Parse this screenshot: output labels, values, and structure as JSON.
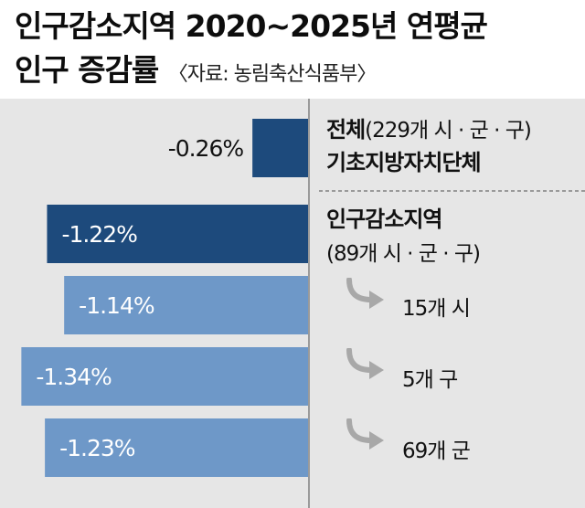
{
  "title": {
    "line1": "인구감소지역 2020~2025년 연평균",
    "line2": "인구 증감률",
    "source": "〈자료: 농림축산식품부〉"
  },
  "colors": {
    "dark_bar": "#1d4a7c",
    "light_bar": "#6e98c8",
    "background": "#e6e6e6",
    "divider": "#9a9a9a",
    "arrow": "#a8a8a8"
  },
  "chart_data": {
    "type": "bar",
    "orientation": "horizontal",
    "categories": [
      "전체(229개 시·군·구) 기초지방자치단체",
      "인구감소지역(89개 시·군·구)",
      "15개 시",
      "5개 구",
      "69개 군"
    ],
    "values": [
      -0.26,
      -1.22,
      -1.14,
      -1.34,
      -1.23
    ],
    "value_labels": [
      "-0.26%",
      "-1.22%",
      "-1.14%",
      "-1.34%",
      "-1.23%"
    ],
    "bar_colors": [
      "#1d4a7c",
      "#1d4a7c",
      "#6e98c8",
      "#6e98c8",
      "#6e98c8"
    ],
    "unit": "%",
    "xlim": [
      -1.38,
      0
    ]
  },
  "labels": {
    "total_line1": "전체",
    "total_paren": "(229개 시 · 군 · 구)",
    "total_line2": "기초지방자치단체",
    "decline_line1": "인구감소지역",
    "decline_line2": "(89개 시 · 군 · 구)",
    "sub_si": "15개 시",
    "sub_gu": "5개 구",
    "sub_gun": "69개 군"
  },
  "icons": {
    "sub_arrow": "curved-arrow-right-icon"
  }
}
